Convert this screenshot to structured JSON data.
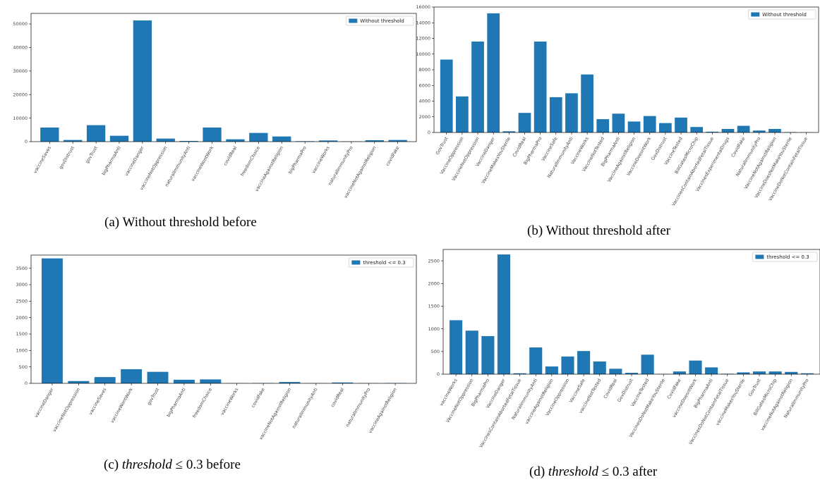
{
  "colors": {
    "bar": "#1f77b4",
    "axis": "#000000",
    "legend_border": "#cccccc"
  },
  "captions": [
    {
      "label": "(a)",
      "text": "Without threshold before"
    },
    {
      "label": "(b)",
      "text": "Without threshold after"
    },
    {
      "label": "(c)",
      "math": "threshold",
      "op": "≤ 0.3",
      "text": "before"
    },
    {
      "label": "(d)",
      "math": "threshold",
      "op": "≤ 0.3",
      "text": "after"
    }
  ],
  "chart_data": [
    {
      "type": "bar",
      "legend": "Without threshold",
      "legend_position": "top-right",
      "ylim": [
        0,
        54500
      ],
      "yticks": [
        0,
        10000,
        20000,
        30000,
        40000,
        50000
      ],
      "categories": [
        "vaccineSaves",
        "govDistrust",
        "govTrust",
        "bigPharmaAnti",
        "vaccineDanger",
        "vaccineNotOppression",
        "naturalImmunityAnti",
        "vaccineWontWork",
        "covidReal",
        "freedomChoice",
        "vaccineAgainstReligion",
        "bigPharmaPro",
        "vaccineWorks",
        "naturalImmunityPro",
        "vaccineNotAgainstReligion",
        "covidFake"
      ],
      "values": [
        6000,
        700,
        7000,
        2500,
        51500,
        1300,
        300,
        6000,
        1000,
        3700,
        2200,
        200,
        500,
        100,
        600,
        700
      ]
    },
    {
      "type": "bar",
      "legend": "Without threshold",
      "legend_position": "top-right",
      "ylim": [
        0,
        16000
      ],
      "yticks": [
        0,
        2000,
        4000,
        6000,
        8000,
        10000,
        12000,
        14000,
        16000
      ],
      "categories": [
        "GovTrust",
        "VaccineOppression",
        "VaccineNotOppression",
        "VaccineDanger",
        "VaccineMakesYouSterile",
        "CovidReal",
        "BigPharmaPro",
        "VaccineSafe",
        "NaturalImmunityAnti",
        "VaccineWorks",
        "VaccineNotTested",
        "BigPharmaAnti",
        "VaccineAgainstReligion",
        "VaccineDoesntWork",
        "GovDistrust",
        "VaccineTested",
        "BillGatesMicroChip",
        "VaccinesContainAbortedFetalTissue",
        "VaccinesExperimentalDrugs",
        "CovidFake",
        "NaturalImmunityPro",
        "VaccineNotAgainstReligion",
        "VaccineDoesNotMakeYouSterile",
        "VaccineDoNotContainFetalTissue"
      ],
      "values": [
        9300,
        4600,
        11600,
        15200,
        150,
        2500,
        11600,
        4500,
        5000,
        7400,
        1700,
        2400,
        1400,
        2100,
        1200,
        1900,
        700,
        100,
        450,
        850,
        250,
        450,
        50,
        20
      ]
    },
    {
      "type": "bar",
      "legend": "threshold <= 0.3",
      "legend_position": "top-right",
      "ylim": [
        0,
        3900
      ],
      "yticks": [
        0,
        500,
        1000,
        1500,
        2000,
        2500,
        3000,
        3500
      ],
      "categories": [
        "vaccineDanger",
        "vaccineNotOppression",
        "vaccineSaves",
        "vaccineWontWork",
        "govTrust",
        "bigPharmaAnti",
        "freedomChoice",
        "vaccineWorks",
        "covidFake",
        "vaccineNotAgainstReligion",
        "naturalImmunityAnti",
        "covidReal",
        "naturalImmunityPro",
        "vaccineAgainstReligion"
      ],
      "values": [
        3800,
        70,
        190,
        430,
        350,
        110,
        120,
        5,
        10,
        40,
        5,
        25,
        5,
        10
      ]
    },
    {
      "type": "bar",
      "legend": "threshold <= 0.3",
      "legend_position": "top-right",
      "ylim": [
        0,
        2750
      ],
      "yticks": [
        0,
        500,
        1000,
        1500,
        2000,
        2500
      ],
      "categories": [
        "vaccineWorks",
        "VaccineNotOppression",
        "BigPharmaPro",
        "VaccineDanger",
        "VaccinesContainAbortedFetalTissue",
        "NaturalImmunityAnti",
        "vaccineAgainstReligion",
        "VaccineOppression",
        "VaccineSafe",
        "vaccineNotTested",
        "CovidReal",
        "GovDistrust",
        "VaccineTested",
        "VaccinesDoNotMakeYouSterile",
        "CovidFake",
        "vaccineDoesntWork",
        "BigPharmaAnti",
        "VaccinesDoNotContainFetalTissue",
        "vaccineMakesYouSterile",
        "GovTrust",
        "BillGatesMicroChip",
        "vaccineNotAgainstReligion",
        "NaturalImmunityPro"
      ],
      "values": [
        1190,
        960,
        840,
        2640,
        20,
        590,
        170,
        390,
        510,
        280,
        120,
        30,
        430,
        5,
        60,
        300,
        150,
        10,
        40,
        60,
        60,
        50,
        20
      ]
    }
  ]
}
